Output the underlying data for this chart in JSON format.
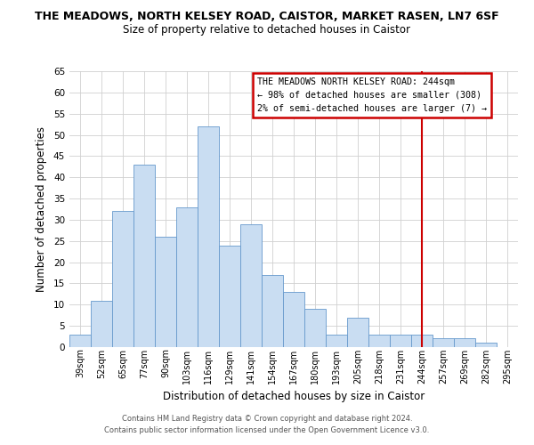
{
  "title": "THE MEADOWS, NORTH KELSEY ROAD, CAISTOR, MARKET RASEN, LN7 6SF",
  "subtitle": "Size of property relative to detached houses in Caistor",
  "xlabel": "Distribution of detached houses by size in Caistor",
  "ylabel": "Number of detached properties",
  "categories": [
    "39sqm",
    "52sqm",
    "65sqm",
    "77sqm",
    "90sqm",
    "103sqm",
    "116sqm",
    "129sqm",
    "141sqm",
    "154sqm",
    "167sqm",
    "180sqm",
    "193sqm",
    "205sqm",
    "218sqm",
    "231sqm",
    "244sqm",
    "257sqm",
    "269sqm",
    "282sqm",
    "295sqm"
  ],
  "values": [
    3,
    11,
    32,
    43,
    26,
    33,
    52,
    24,
    29,
    17,
    13,
    9,
    3,
    7,
    3,
    3,
    3,
    2,
    2,
    1,
    0
  ],
  "bar_color": "#c9ddf2",
  "bar_edge_color": "#6699cc",
  "ylim": [
    0,
    65
  ],
  "yticks": [
    0,
    5,
    10,
    15,
    20,
    25,
    30,
    35,
    40,
    45,
    50,
    55,
    60,
    65
  ],
  "vline_x_index": 16,
  "vline_color": "#cc0000",
  "annotation_title": "THE MEADOWS NORTH KELSEY ROAD: 244sqm",
  "annotation_line1": "← 98% of detached houses are smaller (308)",
  "annotation_line2": "2% of semi-detached houses are larger (7) →",
  "footer1": "Contains HM Land Registry data © Crown copyright and database right 2024.",
  "footer2": "Contains public sector information licensed under the Open Government Licence v3.0.",
  "background_color": "#ffffff",
  "grid_color": "#d0d0d0"
}
